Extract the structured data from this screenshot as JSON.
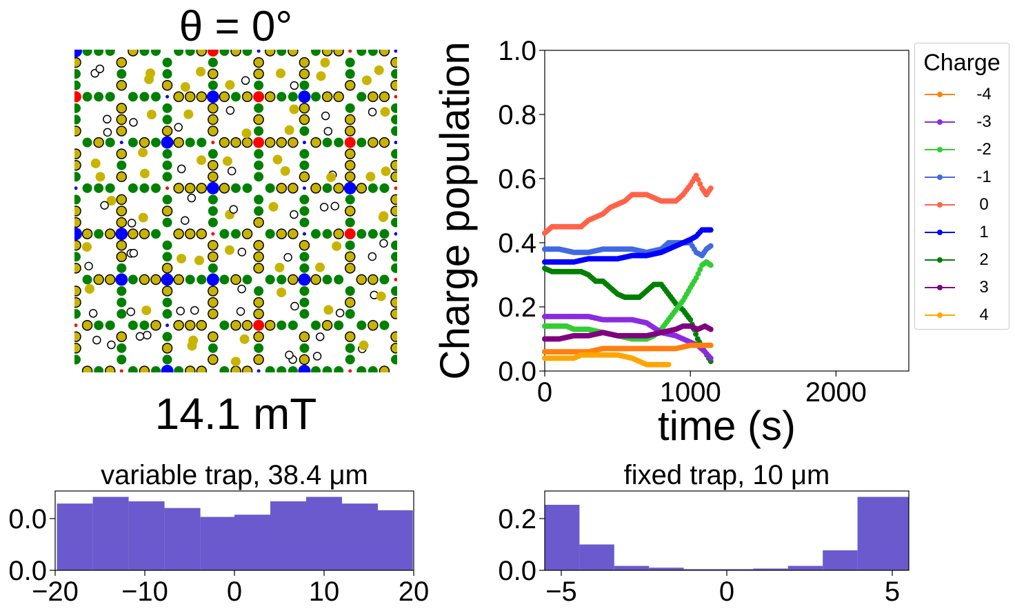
{
  "lattice_panel": {
    "title": "θ = 0°",
    "field_label": "14.1 mT"
  },
  "legend": {
    "title": "Charge",
    "entries": [
      {
        "label": "-4",
        "color": "#ff7f0e"
      },
      {
        "label": "-3",
        "color": "#8a2be2"
      },
      {
        "label": "-2",
        "color": "#32cd32"
      },
      {
        "label": "-1",
        "color": "#4169e1"
      },
      {
        "label": "0",
        "color": "#ff6347"
      },
      {
        "label": "1",
        "color": "#0000ff"
      },
      {
        "label": "2",
        "color": "#008000"
      },
      {
        "label": "3",
        "color": "#800080"
      },
      {
        "label": "4",
        "color": "#ffa500"
      }
    ]
  },
  "chart_data": [
    {
      "type": "line",
      "xlabel": "time (s)",
      "ylabel": "Charge population",
      "xlim": [
        0,
        2500
      ],
      "ylim": [
        0.0,
        1.0
      ],
      "xticks": [
        0,
        1000,
        2000
      ],
      "yticks": [
        "0.0",
        "0.2",
        "0.4",
        "0.6",
        "0.8",
        "1.0"
      ],
      "grid": false,
      "legend_placement": "outside-right",
      "series": [
        {
          "name": "0",
          "color": "#ff6347",
          "points": [
            [
              0,
              0.43
            ],
            [
              50,
              0.45
            ],
            [
              150,
              0.45
            ],
            [
              250,
              0.45
            ],
            [
              300,
              0.47
            ],
            [
              400,
              0.49
            ],
            [
              450,
              0.51
            ],
            [
              500,
              0.52
            ],
            [
              550,
              0.53
            ],
            [
              600,
              0.55
            ],
            [
              700,
              0.55
            ],
            [
              750,
              0.54
            ],
            [
              800,
              0.53
            ],
            [
              900,
              0.53
            ],
            [
              950,
              0.55
            ],
            [
              1000,
              0.58
            ],
            [
              1040,
              0.61
            ],
            [
              1080,
              0.57
            ],
            [
              1110,
              0.55
            ],
            [
              1140,
              0.57
            ]
          ]
        },
        {
          "name": "-1",
          "color": "#4169e1",
          "points": [
            [
              0,
              0.38
            ],
            [
              100,
              0.38
            ],
            [
              200,
              0.37
            ],
            [
              300,
              0.37
            ],
            [
              400,
              0.38
            ],
            [
              500,
              0.38
            ],
            [
              600,
              0.38
            ],
            [
              700,
              0.37
            ],
            [
              800,
              0.38
            ],
            [
              850,
              0.4
            ],
            [
              900,
              0.4
            ],
            [
              950,
              0.4
            ],
            [
              1000,
              0.4
            ],
            [
              1040,
              0.37
            ],
            [
              1080,
              0.36
            ],
            [
              1110,
              0.38
            ],
            [
              1140,
              0.39
            ]
          ]
        },
        {
          "name": "1",
          "color": "#0000ff",
          "points": [
            [
              0,
              0.34
            ],
            [
              100,
              0.34
            ],
            [
              200,
              0.34
            ],
            [
              300,
              0.35
            ],
            [
              400,
              0.35
            ],
            [
              500,
              0.35
            ],
            [
              600,
              0.36
            ],
            [
              700,
              0.36
            ],
            [
              800,
              0.37
            ],
            [
              850,
              0.38
            ],
            [
              900,
              0.39
            ],
            [
              950,
              0.4
            ],
            [
              1000,
              0.41
            ],
            [
              1040,
              0.42
            ],
            [
              1080,
              0.44
            ],
            [
              1110,
              0.44
            ],
            [
              1140,
              0.44
            ]
          ]
        },
        {
          "name": "2",
          "color": "#008000",
          "points": [
            [
              0,
              0.32
            ],
            [
              50,
              0.31
            ],
            [
              150,
              0.31
            ],
            [
              250,
              0.31
            ],
            [
              300,
              0.3
            ],
            [
              350,
              0.28
            ],
            [
              400,
              0.28
            ],
            [
              450,
              0.26
            ],
            [
              500,
              0.24
            ],
            [
              550,
              0.23
            ],
            [
              650,
              0.23
            ],
            [
              700,
              0.25
            ],
            [
              750,
              0.27
            ],
            [
              800,
              0.27
            ],
            [
              850,
              0.24
            ],
            [
              900,
              0.21
            ],
            [
              950,
              0.19
            ],
            [
              1000,
              0.16
            ],
            [
              1050,
              0.1
            ],
            [
              1100,
              0.06
            ],
            [
              1140,
              0.03
            ]
          ]
        },
        {
          "name": "-2",
          "color": "#32cd32",
          "points": [
            [
              0,
              0.14
            ],
            [
              150,
              0.14
            ],
            [
              200,
              0.13
            ],
            [
              300,
              0.13
            ],
            [
              400,
              0.12
            ],
            [
              500,
              0.11
            ],
            [
              600,
              0.1
            ],
            [
              700,
              0.1
            ],
            [
              750,
              0.11
            ],
            [
              800,
              0.13
            ],
            [
              850,
              0.16
            ],
            [
              900,
              0.19
            ],
            [
              950,
              0.22
            ],
            [
              1000,
              0.26
            ],
            [
              1040,
              0.29
            ],
            [
              1080,
              0.33
            ],
            [
              1110,
              0.34
            ],
            [
              1140,
              0.33
            ]
          ]
        },
        {
          "name": "-3",
          "color": "#8a2be2",
          "points": [
            [
              0,
              0.17
            ],
            [
              100,
              0.17
            ],
            [
              200,
              0.17
            ],
            [
              300,
              0.17
            ],
            [
              400,
              0.16
            ],
            [
              500,
              0.16
            ],
            [
              600,
              0.16
            ],
            [
              700,
              0.15
            ],
            [
              800,
              0.12
            ],
            [
              900,
              0.11
            ],
            [
              950,
              0.1
            ],
            [
              1000,
              0.09
            ],
            [
              1050,
              0.08
            ],
            [
              1100,
              0.06
            ],
            [
              1140,
              0.04
            ]
          ]
        },
        {
          "name": "3",
          "color": "#800080",
          "points": [
            [
              0,
              0.1
            ],
            [
              100,
              0.1
            ],
            [
              200,
              0.11
            ],
            [
              300,
              0.11
            ],
            [
              400,
              0.12
            ],
            [
              500,
              0.11
            ],
            [
              600,
              0.11
            ],
            [
              700,
              0.11
            ],
            [
              800,
              0.12
            ],
            [
              900,
              0.13
            ],
            [
              950,
              0.14
            ],
            [
              1000,
              0.14
            ],
            [
              1050,
              0.13
            ],
            [
              1100,
              0.14
            ],
            [
              1140,
              0.13
            ]
          ]
        },
        {
          "name": "-4",
          "color": "#ff7f0e",
          "points": [
            [
              0,
              0.06
            ],
            [
              100,
              0.06
            ],
            [
              200,
              0.06
            ],
            [
              300,
              0.06
            ],
            [
              400,
              0.07
            ],
            [
              500,
              0.07
            ],
            [
              600,
              0.07
            ],
            [
              700,
              0.07
            ],
            [
              800,
              0.07
            ],
            [
              900,
              0.07
            ],
            [
              1000,
              0.08
            ],
            [
              1100,
              0.08
            ],
            [
              1140,
              0.08
            ]
          ]
        },
        {
          "name": "4",
          "color": "#ffa500",
          "points": [
            [
              0,
              0.04
            ],
            [
              100,
              0.04
            ],
            [
              200,
              0.04
            ],
            [
              250,
              0.05
            ],
            [
              300,
              0.05
            ],
            [
              400,
              0.05
            ],
            [
              500,
              0.05
            ],
            [
              600,
              0.04
            ],
            [
              650,
              0.03
            ],
            [
              700,
              0.02
            ],
            [
              800,
              0.02
            ],
            [
              850,
              0.02
            ]
          ]
        }
      ]
    },
    {
      "type": "bar",
      "title": "variable trap, 38.4 μm",
      "xlim": [
        -20,
        20
      ],
      "xticks": [
        "−20",
        "−10",
        "0",
        "10",
        "20"
      ],
      "yticks": [
        "0.0",
        "0.0"
      ],
      "bin_edges": [
        -19.8,
        -15.8,
        -11.8,
        -7.8,
        -3.8,
        0.0,
        4.0,
        8.0,
        12.0,
        16.0,
        19.9
      ],
      "values": [
        0.03,
        0.033,
        0.031,
        0.028,
        0.024,
        0.025,
        0.031,
        0.033,
        0.03,
        0.027
      ],
      "color": "#6a5acd"
    },
    {
      "type": "bar",
      "title": "fixed trap, 10 μm",
      "xlim": [
        -5.5,
        5.5
      ],
      "xticks": [
        "−5",
        "0",
        "5"
      ],
      "yticks": [
        "0.0",
        "0.2"
      ],
      "bin_edges": [
        -5.5,
        -4.45,
        -3.4,
        -2.35,
        -1.3,
        -0.25,
        0.8,
        1.85,
        2.9,
        3.95,
        5.0,
        5.5
      ],
      "values": [
        0.223,
        0.088,
        0.015,
        0.009,
        0.004,
        0.004,
        0.006,
        0.015,
        0.068,
        0.25,
        0.25
      ],
      "color": "#6a5acd"
    }
  ]
}
